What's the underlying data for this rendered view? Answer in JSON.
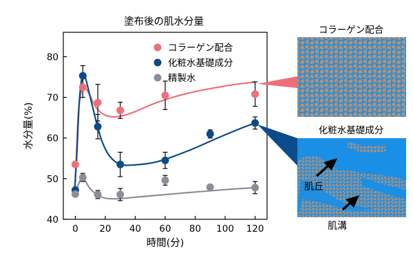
{
  "chart_data": {
    "type": "scatter",
    "title": "塗布後の肌水分量",
    "xlabel": "時間(分)",
    "ylabel": "水分量(%)",
    "xlim": [
      -8,
      128
    ],
    "ylim": [
      40,
      86
    ],
    "xticks": [
      0,
      20,
      40,
      60,
      80,
      100,
      120
    ],
    "yticks": [
      40,
      50,
      60,
      70,
      80
    ],
    "grid": false,
    "legend_position": "top-right",
    "series": [
      {
        "name": "コラーゲン配合",
        "color": "#ee6f78",
        "x": [
          0,
          5,
          15,
          30,
          60,
          120
        ],
        "y": [
          53.5,
          72.5,
          68.7,
          66.8,
          70.5,
          70.8
        ],
        "err": [
          0,
          2.5,
          4.5,
          2.0,
          3.5,
          3.0
        ],
        "fit": [
          [
            -0.5,
            47
          ],
          [
            0.5,
            54
          ],
          [
            2,
            66
          ],
          [
            4,
            71.5
          ],
          [
            6,
            72.5
          ],
          [
            9,
            71
          ],
          [
            13,
            68
          ],
          [
            18,
            66
          ],
          [
            25,
            65.2
          ],
          [
            32,
            65.5
          ],
          [
            40,
            66.5
          ],
          [
            55,
            68.8
          ],
          [
            75,
            71
          ],
          [
            100,
            72.8
          ],
          [
            120,
            73.8
          ]
        ]
      },
      {
        "name": "化粧水基礎成分",
        "color": "#0b4a8b",
        "x": [
          0,
          5,
          15,
          30,
          60,
          90,
          120
        ],
        "y": [
          47.2,
          75.3,
          62.8,
          53.5,
          54.5,
          61.0,
          63.7
        ],
        "err": [
          0,
          2.5,
          3.0,
          3.0,
          2.0,
          1.0,
          1.5
        ],
        "fit": [
          [
            -0.5,
            46.5
          ],
          [
            1,
            56
          ],
          [
            2.5,
            68
          ],
          [
            4,
            74
          ],
          [
            5.5,
            75.5
          ],
          [
            7,
            74.5
          ],
          [
            10,
            70
          ],
          [
            14,
            64
          ],
          [
            18,
            59
          ],
          [
            23,
            55.5
          ],
          [
            30,
            53.5
          ],
          [
            40,
            53.4
          ],
          [
            55,
            54.2
          ],
          [
            75,
            56.8
          ],
          [
            95,
            60
          ],
          [
            110,
            62.3
          ],
          [
            120,
            63.7
          ]
        ]
      },
      {
        "name": "精製水",
        "color": "#8e8d96",
        "x": [
          0,
          5,
          15,
          30,
          60,
          90,
          120
        ],
        "y": [
          46.2,
          50.3,
          46.1,
          46.1,
          49.6,
          47.9,
          47.8
        ],
        "err": [
          0,
          1.0,
          1.0,
          1.5,
          1.2,
          0.5,
          1.5
        ],
        "fit": [
          [
            -0.5,
            45.8
          ],
          [
            2,
            48.5
          ],
          [
            4,
            50
          ],
          [
            6,
            49.8
          ],
          [
            10,
            47.5
          ],
          [
            16,
            45.7
          ],
          [
            22,
            45.1
          ],
          [
            30,
            45.1
          ],
          [
            45,
            45.6
          ],
          [
            70,
            46.4
          ],
          [
            100,
            47.3
          ],
          [
            120,
            47.8
          ]
        ]
      }
    ]
  },
  "panels": {
    "top_title": "コラーゲン配合",
    "bottom_title": "化粧水基礎成分",
    "label_hill": "肌丘",
    "label_groove": "肌溝"
  },
  "colors": {
    "skin_tan": "#b89171",
    "skin_blue": "#1a8fe6"
  }
}
